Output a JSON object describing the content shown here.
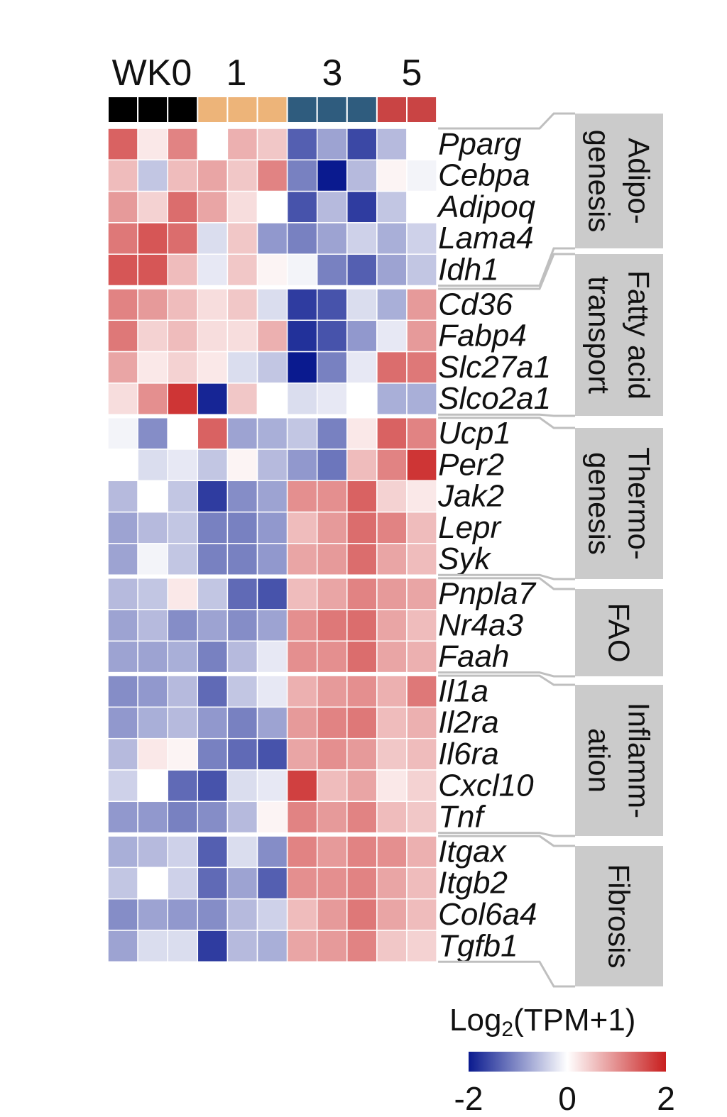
{
  "chart_data": {
    "type": "heatmap",
    "columns": {
      "group_labels": [
        "WK0",
        "1",
        "3",
        "5"
      ],
      "groups": [
        {
          "label": "WK0",
          "count": 3,
          "color": "#000000"
        },
        {
          "label": "1",
          "count": 3,
          "color": "#EDB479"
        },
        {
          "label": "3",
          "count": 3,
          "color": "#2F5C7E"
        },
        {
          "label": "5",
          "count": 2,
          "color": "#C94444"
        }
      ]
    },
    "categories": [
      {
        "lines": [
          "Adipo-",
          "genesis"
        ],
        "genes": [
          "Pparg",
          "Cebpa",
          "Adipoq",
          "Lama4",
          "Idh1"
        ]
      },
      {
        "lines": [
          "Fatty acid",
          "transport"
        ],
        "genes": [
          "Cd36",
          "Fabp4",
          "Slc27a1",
          "Slco2a1"
        ]
      },
      {
        "lines": [
          "Thermo-",
          "genesis"
        ],
        "genes": [
          "Ucp1",
          "Per2",
          "Jak2",
          "Lepr",
          "Syk"
        ]
      },
      {
        "lines": [
          "FAO"
        ],
        "genes": [
          "Pnpla7",
          "Nr4a3",
          "Faah"
        ]
      },
      {
        "lines": [
          "Inflamm-",
          "ation"
        ],
        "genes": [
          "Il1a",
          "Il2ra",
          "Il6ra",
          "Cxcl10",
          "Tnf"
        ]
      },
      {
        "lines": [
          "Fibrosis"
        ],
        "genes": [
          "Itgax",
          "Itgb2",
          "Col6a4",
          "Tgfb1"
        ]
      }
    ],
    "values": [
      [
        1.4,
        0.2,
        1.1,
        0.0,
        0.7,
        0.5,
        -1.4,
        -0.8,
        -1.6,
        -0.6,
        0.0
      ],
      [
        0.6,
        -0.5,
        0.6,
        0.8,
        0.5,
        1.1,
        -1.1,
        -2.0,
        -0.6,
        0.1,
        -0.1
      ],
      [
        0.9,
        0.4,
        1.3,
        0.8,
        0.3,
        0.0,
        -1.5,
        -0.6,
        -1.7,
        -0.5,
        0.0
      ],
      [
        1.2,
        1.5,
        1.3,
        -0.3,
        0.5,
        -0.9,
        -1.1,
        -0.8,
        -0.4,
        -0.7,
        -0.4
      ],
      [
        1.5,
        1.5,
        0.6,
        -0.2,
        0.5,
        0.1,
        -0.1,
        -1.1,
        -1.4,
        -0.8,
        -0.5
      ],
      [
        1.1,
        0.9,
        0.6,
        0.3,
        0.5,
        -0.3,
        -1.7,
        -1.5,
        -0.3,
        -0.7,
        0.9
      ],
      [
        1.2,
        0.4,
        0.6,
        0.3,
        0.3,
        0.7,
        -1.8,
        -1.5,
        -0.9,
        -0.2,
        0.9
      ],
      [
        0.8,
        0.2,
        0.4,
        0.2,
        -0.3,
        -0.5,
        -2.0,
        -1.1,
        -0.2,
        1.3,
        1.2
      ],
      [
        0.3,
        1.0,
        1.8,
        -1.9,
        0.5,
        0.0,
        -0.3,
        -0.2,
        0.0,
        -0.7,
        -0.7
      ],
      [
        -0.1,
        -1.0,
        0.0,
        1.4,
        -0.8,
        -0.7,
        -0.5,
        -1.1,
        0.2,
        1.4,
        1.1
      ],
      [
        0.0,
        -0.3,
        -0.2,
        -0.5,
        0.1,
        -0.6,
        -0.9,
        -1.2,
        0.6,
        1.1,
        1.8
      ],
      [
        -0.6,
        0.0,
        -0.5,
        -1.7,
        -1.0,
        -0.8,
        1.0,
        1.0,
        1.4,
        0.4,
        0.2
      ],
      [
        -0.8,
        -0.6,
        -0.5,
        -1.1,
        -1.1,
        -0.9,
        0.6,
        0.9,
        1.3,
        1.1,
        0.6
      ],
      [
        -0.8,
        -0.1,
        -0.5,
        -1.1,
        -1.1,
        -0.9,
        0.8,
        0.9,
        1.3,
        0.8,
        0.6
      ],
      [
        -0.6,
        -0.5,
        0.2,
        -0.5,
        -1.3,
        -1.5,
        0.6,
        0.8,
        1.1,
        0.9,
        0.8
      ],
      [
        -0.8,
        -0.6,
        -1.0,
        -0.8,
        -1.0,
        -0.8,
        1.0,
        1.2,
        1.3,
        0.8,
        0.6
      ],
      [
        -0.8,
        -0.8,
        -0.7,
        -1.1,
        -0.6,
        -0.2,
        1.0,
        1.0,
        1.3,
        0.8,
        0.7
      ],
      [
        -1.0,
        -0.9,
        -0.6,
        -1.3,
        -0.5,
        -0.2,
        0.7,
        0.9,
        1.0,
        0.7,
        1.2
      ],
      [
        -0.9,
        -0.7,
        -0.6,
        -0.9,
        -1.1,
        -0.8,
        0.9,
        1.1,
        1.2,
        0.6,
        0.7
      ],
      [
        -0.6,
        0.2,
        0.1,
        -1.1,
        -1.3,
        -1.5,
        0.8,
        1.0,
        0.9,
        0.5,
        0.6
      ],
      [
        -0.4,
        0.0,
        -1.3,
        -1.5,
        -0.3,
        -0.2,
        1.7,
        0.6,
        0.8,
        0.2,
        0.4
      ],
      [
        -0.9,
        -0.9,
        -1.1,
        -1.0,
        -0.6,
        0.1,
        1.1,
        0.9,
        1.1,
        0.6,
        0.5
      ],
      [
        -0.7,
        -0.6,
        -0.4,
        -1.4,
        -0.3,
        -1.0,
        1.1,
        0.9,
        1.1,
        1.0,
        0.7
      ],
      [
        -0.5,
        0.0,
        -0.4,
        -1.3,
        -0.8,
        -1.4,
        1.0,
        1.0,
        1.1,
        0.8,
        0.6
      ],
      [
        -1.0,
        -0.8,
        -0.9,
        -1.0,
        -0.6,
        -0.4,
        0.6,
        0.9,
        1.2,
        0.8,
        0.6
      ],
      [
        -0.8,
        -0.3,
        -0.3,
        -1.7,
        -0.6,
        -0.7,
        0.8,
        0.9,
        1.1,
        0.5,
        0.4
      ]
    ],
    "color_scale": {
      "title_base": "Log",
      "title_sub": "2",
      "title_rest": "(TPM+1)",
      "min": -2,
      "max": 2,
      "ticks": [
        {
          "value": -2,
          "label": "-2"
        },
        {
          "value": 0,
          "label": "0"
        },
        {
          "value": 2,
          "label": "2"
        }
      ],
      "low_color": "#0A1A8F",
      "mid_color": "#FFFFFF",
      "high_color": "#C81E1E"
    },
    "category_box_color": "#CBCBCB"
  }
}
